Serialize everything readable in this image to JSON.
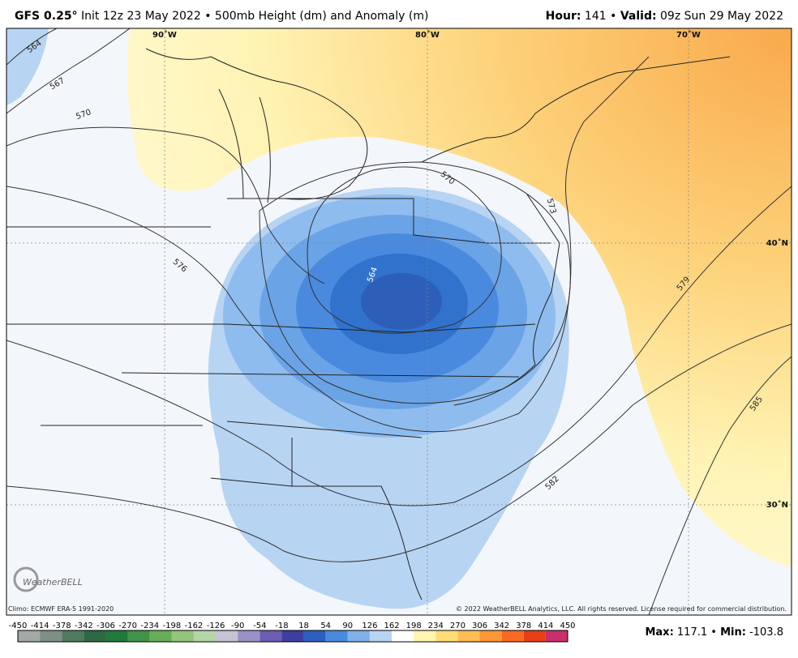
{
  "header": {
    "model": "GFS 0.25°",
    "description": "Init 12z 23 May 2022 • 500mb Height (dm) and Anomaly (m)",
    "hour_label": "Hour:",
    "hour": "141",
    "separator": "•",
    "valid_label": "Valid:",
    "valid": "09z Sun 29 May 2022"
  },
  "map": {
    "longitude_labels": [
      "90˚W",
      "80˚W",
      "70˚W"
    ],
    "latitude_labels": [
      "40˚N",
      "30˚N"
    ],
    "contour_labels": [
      "564",
      "567",
      "570",
      "570",
      "573",
      "576",
      "579",
      "582",
      "585",
      "564"
    ]
  },
  "footer": {
    "climo": "Climo: ECMWF ERA-5 1991-2020",
    "copyright": "© 2022 WeatherBELL Analytics, LLC. All rights reserved. License required for commercial distribution.",
    "logo": "WeatherBELL"
  },
  "colorbar": {
    "ticks": [
      -450,
      -414,
      -378,
      -342,
      -306,
      -270,
      -234,
      -198,
      -162,
      -126,
      -90,
      -54,
      -18,
      18,
      54,
      90,
      126,
      162,
      198,
      234,
      270,
      306,
      342,
      378,
      414,
      450
    ],
    "colors": [
      "#a3aaa6",
      "#7e8f86",
      "#4f7a60",
      "#2c6a44",
      "#1f7a3c",
      "#3f9448",
      "#66ad5a",
      "#93c57c",
      "#b6d5a6",
      "#c6c3d4",
      "#9b91c6",
      "#6b5eb0",
      "#3d3f9f",
      "#2d5fc0",
      "#4a8ade",
      "#7fb0ea",
      "#b8d4f3",
      "#ffffff",
      "#fff4b0",
      "#ffdc77",
      "#ffbd55",
      "#ff9637",
      "#f86a22",
      "#e64018",
      "#c8306a"
    ]
  },
  "stats": {
    "max_label": "Max:",
    "max": 117.1,
    "separator": "•",
    "min_label": "Min:",
    "min": -103.8
  }
}
